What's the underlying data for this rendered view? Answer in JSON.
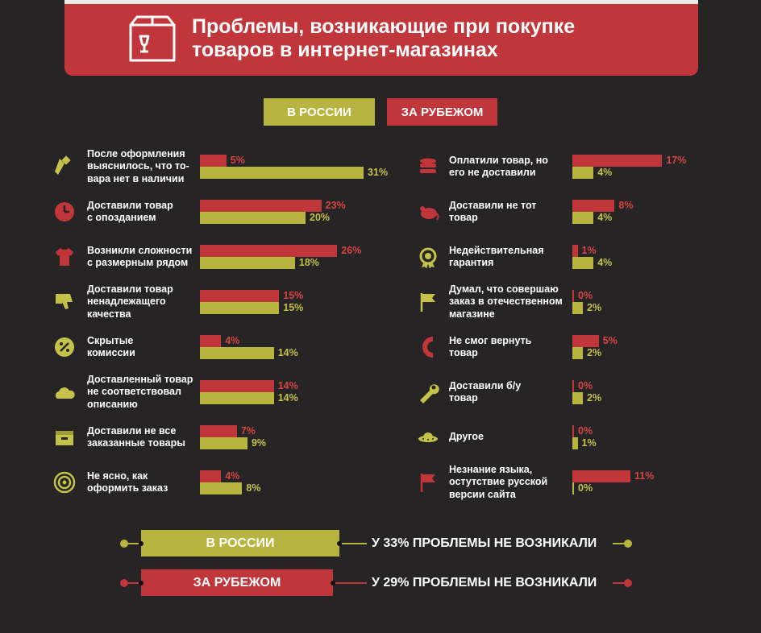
{
  "header": {
    "title": "Проблемы, возникающие при покупке\nтоваров в интернет-магазинах",
    "icon": "package-icon"
  },
  "legend": {
    "russia": "В РОССИИ",
    "abroad": "ЗА РУБЕЖОМ"
  },
  "colors": {
    "russia": "#b7b540",
    "abroad": "#c0363a",
    "background": "#262424"
  },
  "chart_data": {
    "type": "bar",
    "series": [
      {
        "name": "ЗА РУБЕЖОМ",
        "color": "#c0363a"
      },
      {
        "name": "В РОССИИ",
        "color": "#b7b540"
      }
    ],
    "categories": [
      {
        "label": "После оформления\nвыяснилось, что то-\nвара нет в наличии",
        "icon": "flashlight-icon",
        "abroad": 5,
        "russia": 31
      },
      {
        "label": "Доставили товар\nс опозданием",
        "icon": "clock-icon",
        "abroad": 23,
        "russia": 20
      },
      {
        "label": "Возникли сложности\nс размерным рядом",
        "icon": "tshirt-icon",
        "abroad": 26,
        "russia": 18
      },
      {
        "label": "Доставили товар\nненадлежащего\nкачества",
        "icon": "thumbs-down-icon",
        "abroad": 15,
        "russia": 15
      },
      {
        "label": "Скрытые\nкомиссии",
        "icon": "percent-icon",
        "abroad": 4,
        "russia": 14
      },
      {
        "label": "Доставленный товар\nне соответствовал\nописанию",
        "icon": "cloud-icon",
        "abroad": 14,
        "russia": 14
      },
      {
        "label": "Доставили не все\nзаказанные товары",
        "icon": "box-icon",
        "abroad": 7,
        "russia": 9
      },
      {
        "label": "Не ясно, как\nоформить заказ",
        "icon": "target-icon",
        "abroad": 4,
        "russia": 8
      },
      {
        "label": "Оплатили товар, но\nего не доставили",
        "icon": "coins-icon",
        "abroad": 17,
        "russia": 4
      },
      {
        "label": "Доставили не тот\nтовар",
        "icon": "mouse-icon",
        "abroad": 8,
        "russia": 4
      },
      {
        "label": "Недействительная\nгарантия",
        "icon": "badge-icon",
        "abroad": 1,
        "russia": 4
      },
      {
        "label": "Думал, что совершаю\nзаказ в отечественном\nмагазине",
        "icon": "flag-icon",
        "abroad": 0,
        "russia": 2
      },
      {
        "label": "Не смог вернуть\nтовар",
        "icon": "magnet-icon",
        "abroad": 5,
        "russia": 2
      },
      {
        "label": "Доставили б/у\nтовар",
        "icon": "wrench-icon",
        "abroad": 0,
        "russia": 2
      },
      {
        "label": "Другое",
        "icon": "ufo-icon",
        "abroad": 0,
        "russia": 1
      },
      {
        "label": "Незнание языка,\nостутствие русской\nверсии сайта",
        "icon": "flag-icon",
        "abroad": 11,
        "russia": 0
      }
    ]
  },
  "summary": {
    "russia": {
      "label": "В РОССИИ",
      "text": "У 33% ПРОБЛЕМЫ НЕ ВОЗНИКАЛИ"
    },
    "abroad": {
      "label": "ЗА РУБЕЖОМ",
      "text": "У 29% ПРОБЛЕМЫ НЕ ВОЗНИКАЛИ"
    }
  }
}
